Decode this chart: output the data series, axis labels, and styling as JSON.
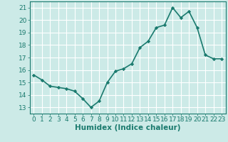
{
  "x": [
    0,
    1,
    2,
    3,
    4,
    5,
    6,
    7,
    8,
    9,
    10,
    11,
    12,
    13,
    14,
    15,
    16,
    17,
    18,
    19,
    20,
    21,
    22,
    23
  ],
  "y": [
    15.6,
    15.2,
    14.7,
    14.6,
    14.5,
    14.3,
    13.7,
    13.0,
    13.5,
    15.0,
    15.9,
    16.1,
    16.5,
    17.8,
    18.3,
    19.4,
    19.6,
    21.0,
    20.2,
    20.7,
    19.4,
    17.2,
    16.9,
    16.9
  ],
  "line_color": "#1a7a6e",
  "marker": "D",
  "marker_size": 2.2,
  "background_color": "#cceae7",
  "grid_color": "#ffffff",
  "xlabel": "Humidex (Indice chaleur)",
  "xlim": [
    -0.5,
    23.5
  ],
  "ylim": [
    12.5,
    21.5
  ],
  "yticks": [
    13,
    14,
    15,
    16,
    17,
    18,
    19,
    20,
    21
  ],
  "xticks": [
    0,
    1,
    2,
    3,
    4,
    5,
    6,
    7,
    8,
    9,
    10,
    11,
    12,
    13,
    14,
    15,
    16,
    17,
    18,
    19,
    20,
    21,
    22,
    23
  ],
  "tick_color": "#1a7a6e",
  "label_color": "#1a7a6e",
  "font_size": 6.5,
  "xlabel_fontsize": 7.5,
  "line_width": 1.2
}
